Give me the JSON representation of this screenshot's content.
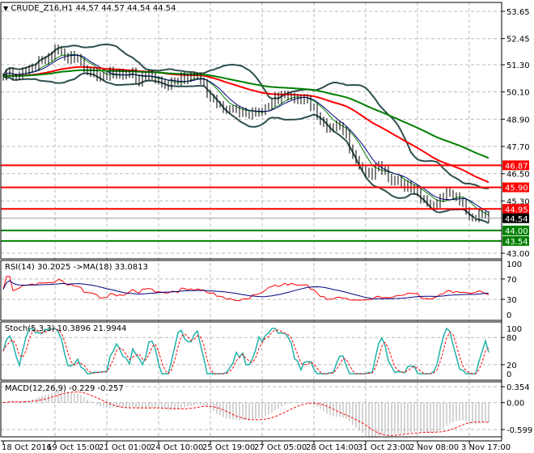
{
  "chart_data": {
    "type": "candlestick",
    "symbol": "CRUDE_Z16,H1",
    "ohlc_header": "44.57 44.57 44.54 44.54",
    "price_ticks": [
      "53.65",
      "52.45",
      "51.30",
      "50.10",
      "48.90",
      "47.70",
      "46.50",
      "45.30",
      "43.00"
    ],
    "price_range": [
      43.0,
      53.65
    ],
    "time_labels": [
      "18 Oct 2016",
      "19 Oct 15:00",
      "21 Oct 01:00",
      "24 Oct 10:00",
      "25 Oct 19:00",
      "27 Oct 05:00",
      "28 Oct 14:00",
      "31 Oct 23:00",
      "2 Nov 08:00",
      "3 Nov 17:00"
    ],
    "closes": [
      50.8,
      50.9,
      50.8,
      51.0,
      51.2,
      51.3,
      51.4,
      51.6,
      52.0,
      51.8,
      51.7,
      51.6,
      51.3,
      51.0,
      50.9,
      50.8,
      50.9,
      50.8,
      50.9,
      50.8,
      50.9,
      50.7,
      50.8,
      50.7,
      50.6,
      50.3,
      50.6,
      50.7,
      50.6,
      50.8,
      50.7,
      50.4,
      50.0,
      49.6,
      49.3,
      49.4,
      49.2,
      49.3,
      49.2,
      49.2,
      49.3,
      49.4,
      49.8,
      50.1,
      49.9,
      49.8,
      49.8,
      49.6,
      49.4,
      48.9,
      48.5,
      48.6,
      48.5,
      48.1,
      47.4,
      46.8,
      46.6,
      46.5,
      46.7,
      46.6,
      46.2,
      46.2,
      46.0,
      45.8,
      45.6,
      45.4,
      45.0,
      45.3,
      45.6,
      45.5,
      45.5,
      45.2,
      44.6,
      44.7,
      44.7,
      44.54
    ],
    "levels": [
      {
        "value": "46.87",
        "color": "#ff0000"
      },
      {
        "value": "45.90",
        "color": "#ff0000"
      },
      {
        "value": "44.95",
        "color": "#ff0000"
      },
      {
        "value": "44.00",
        "color": "#008000"
      },
      {
        "value": "43.54",
        "color": "#008000"
      }
    ],
    "current_price": "44.54",
    "rsi": {
      "label": "RSI(14) 30.2025  ->MA(18) 33.0813",
      "ticks": [
        "100",
        "70",
        "30",
        "0"
      ],
      "colors": [
        "#ff0000",
        "#000080"
      ]
    },
    "stoch": {
      "label": "Stoch(5,3,3) 10.3896 21.9944",
      "ticks": [
        "100",
        "80",
        "20",
        "0"
      ],
      "colors": [
        "#20b2aa",
        "#ff0000"
      ]
    },
    "macd": {
      "label": "MACD(12,26,9) -0.229 -0.257",
      "ticks": [
        "0.354",
        "0.00",
        "-0.599"
      ],
      "range": [
        -0.599,
        0.354
      ]
    },
    "colors": {
      "slow_ma": "#008000",
      "mid_ma": "#ff0000",
      "bands": "#2f4f4f",
      "candles": "#000000"
    }
  }
}
